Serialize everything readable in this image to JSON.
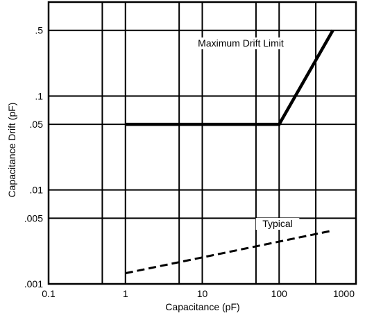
{
  "chart_data": {
    "type": "line",
    "x_scale": "log",
    "y_scale": "log",
    "xlim": [
      0.1,
      1000
    ],
    "ylim": [
      0.001,
      1
    ],
    "xlabel": "Capacitance (pF)",
    "ylabel": "Capacitance Drift (pF)",
    "grid": true,
    "x_gridlines": [
      0.1,
      0.5,
      1,
      5,
      10,
      50,
      100,
      300,
      1000
    ],
    "y_gridlines": [
      0.001,
      0.005,
      0.01,
      0.05,
      0.1,
      0.5,
      1
    ],
    "x_ticks": [
      {
        "value": 0.1,
        "label": "0.1"
      },
      {
        "value": 1,
        "label": "1"
      },
      {
        "value": 10,
        "label": "10"
      },
      {
        "value": 100,
        "label": "100"
      },
      {
        "value": 1000,
        "label": "1000"
      }
    ],
    "y_ticks": [
      {
        "value": 0.5,
        "label": ".5"
      },
      {
        "value": 0.1,
        "label": ".1"
      },
      {
        "value": 0.05,
        "label": ".05"
      },
      {
        "value": 0.01,
        "label": ".01"
      },
      {
        "value": 0.005,
        "label": ".005"
      },
      {
        "value": 0.001,
        "label": ".001"
      }
    ],
    "series": [
      {
        "name": "Maximum Drift Limit",
        "style": "solid",
        "x": [
          1,
          100,
          500
        ],
        "y": [
          0.05,
          0.05,
          0.5
        ]
      },
      {
        "name": "Typical",
        "style": "dashed",
        "x": [
          1,
          500
        ],
        "y": [
          0.0013,
          0.0037
        ]
      }
    ],
    "annotations": [
      {
        "text": "Maximum Drift Limit",
        "series": "Maximum Drift Limit"
      },
      {
        "text": "Typical",
        "series": "Typical"
      }
    ]
  }
}
